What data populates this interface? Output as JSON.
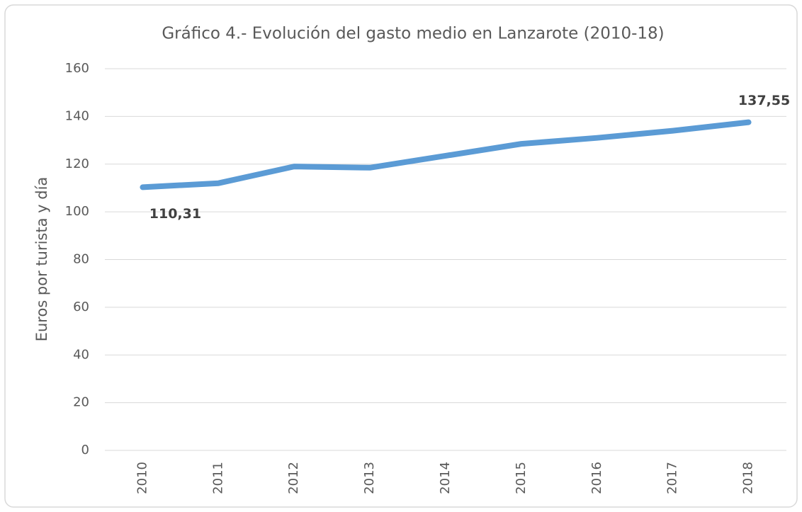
{
  "chart_data": {
    "type": "line",
    "title": "Gráfico 4.- Evolución del gasto medio en Lanzarote (2010-18)",
    "y_label": "Euros por turista y día",
    "categories": [
      "2010",
      "2011",
      "2012",
      "2013",
      "2014",
      "2015",
      "2016",
      "2017",
      "2018"
    ],
    "series": [
      {
        "name": "Gasto medio",
        "color": "#5b9bd5",
        "values": [
          110.31,
          112,
          119,
          118.5,
          123.5,
          128.5,
          131,
          134,
          137.55
        ],
        "value_labels": [
          "110,31",
          null,
          null,
          null,
          null,
          null,
          null,
          null,
          "137,55"
        ]
      }
    ],
    "ylim": [
      0,
      160
    ],
    "yticks": [
      0,
      20,
      40,
      60,
      80,
      100,
      120,
      140,
      160
    ],
    "grid": true
  }
}
